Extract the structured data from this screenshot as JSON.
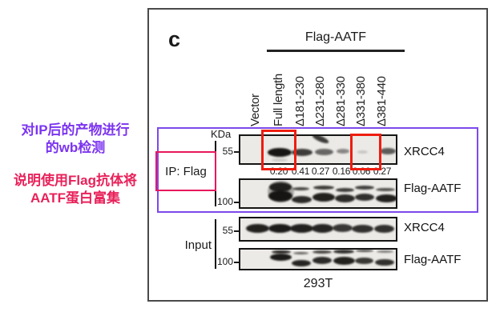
{
  "annotations": {
    "note_purple": {
      "lines": [
        "对IP后的产物进行",
        "的wb检测"
      ],
      "color": "#7B33F0"
    },
    "note_pink": {
      "lines": [
        "说明使用Flag抗体将",
        "AATF蛋白富集"
      ],
      "color": "#E8215A"
    }
  },
  "figure": {
    "panel_label": "c",
    "header": "Flag-AATF",
    "lanes": [
      "Vector",
      "Full length",
      "Δ181-230",
      "Δ231-280",
      "Δ281-330",
      "Δ331-380",
      "Δ381-440"
    ],
    "kda_label": "KDa",
    "ip_group_label": "IP: Flag",
    "input_group_label": "Input",
    "cell_line": "293T",
    "quant_values": [
      "0.20",
      "0.41",
      "0.27",
      "0.16",
      "0.06",
      "0.27"
    ],
    "highlight_color": "#EE1D0F",
    "ip_region_box_color": "#7C49EB",
    "ip_flag_box_color": "#E8175C",
    "blots": [
      {
        "group": "IP: Flag",
        "target": "XRCC4",
        "marker": "55",
        "bands": [
          [
            49,
            15,
            30,
            11,
            0.97,
            0
          ],
          [
            49,
            28,
            20,
            4,
            0.14,
            0
          ],
          [
            77,
            16,
            26,
            9,
            0.8,
            0
          ],
          [
            104,
            16,
            23,
            8,
            0.6,
            0
          ],
          [
            100,
            0,
            22,
            7,
            0.8,
            24
          ],
          [
            128,
            16,
            16,
            6,
            0.45,
            0
          ],
          [
            152,
            18,
            13,
            4,
            0.16,
            0
          ],
          [
            184,
            15,
            20,
            8,
            0.65,
            0
          ]
        ]
      },
      {
        "group": "IP: Flag",
        "target": "Flag-AATF",
        "marker": "100",
        "bands": [
          [
            50,
            3,
            28,
            12,
            0.9,
            0
          ],
          [
            50,
            13,
            30,
            14,
            0.96,
            0
          ],
          [
            50,
            1,
            33,
            27,
            0.3,
            0
          ],
          [
            75,
            9,
            21,
            4,
            0.75,
            0
          ],
          [
            76,
            20,
            25,
            9,
            0.88,
            0
          ],
          [
            104,
            7,
            26,
            5,
            0.8,
            0
          ],
          [
            104,
            16,
            28,
            11,
            0.92,
            0
          ],
          [
            130,
            10,
            23,
            5,
            0.8,
            0
          ],
          [
            130,
            18,
            25,
            10,
            0.88,
            0
          ],
          [
            155,
            7,
            24,
            5,
            0.78,
            0
          ],
          [
            155,
            17,
            24,
            9,
            0.85,
            0
          ],
          [
            181,
            10,
            24,
            4,
            0.7,
            0
          ],
          [
            182,
            18,
            27,
            10,
            0.92,
            0
          ]
        ]
      },
      {
        "group": "Input",
        "target": "XRCC4",
        "marker": "55",
        "bands": [
          [
            21,
            7,
            29,
            11,
            0.92,
            0
          ],
          [
            49,
            7,
            29,
            11,
            0.95,
            0
          ],
          [
            76,
            7,
            29,
            11,
            0.92,
            0
          ],
          [
            102,
            7,
            27,
            11,
            0.9,
            0
          ],
          [
            127,
            7,
            25,
            10,
            0.82,
            0
          ],
          [
            152,
            8,
            27,
            10,
            0.85,
            0
          ],
          [
            179,
            8,
            25,
            10,
            0.85,
            0
          ]
        ]
      },
      {
        "group": "Input",
        "target": "Flag-AATF",
        "marker": "100",
        "bands": [
          [
            51,
            1,
            24,
            4,
            0.9,
            0
          ],
          [
            50,
            5,
            27,
            9,
            0.95,
            0
          ],
          [
            75,
            3,
            19,
            3,
            0.6,
            0
          ],
          [
            76,
            13,
            24,
            8,
            0.9,
            0
          ],
          [
            102,
            1,
            24,
            4,
            0.75,
            0
          ],
          [
            102,
            9,
            24,
            9,
            0.88,
            0
          ],
          [
            129,
            0,
            26,
            5,
            0.85,
            0
          ],
          [
            129,
            9,
            27,
            10,
            0.92,
            0
          ],
          [
            155,
            0,
            22,
            3,
            0.7,
            0
          ],
          [
            154,
            10,
            23,
            8,
            0.82,
            0
          ],
          [
            180,
            1,
            21,
            3,
            0.5,
            0
          ],
          [
            180,
            12,
            24,
            8,
            0.85,
            0
          ]
        ]
      }
    ]
  }
}
